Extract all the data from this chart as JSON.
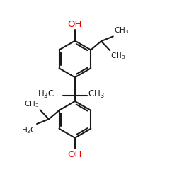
{
  "bg_color": "#ffffff",
  "line_color": "#1a1a1a",
  "oh_color": "#ee0000",
  "lw": 1.5,
  "figsize": [
    2.5,
    2.5
  ],
  "dpi": 100,
  "xlim": [
    -0.05,
    1.05
  ],
  "ylim": [
    -0.05,
    1.05
  ]
}
